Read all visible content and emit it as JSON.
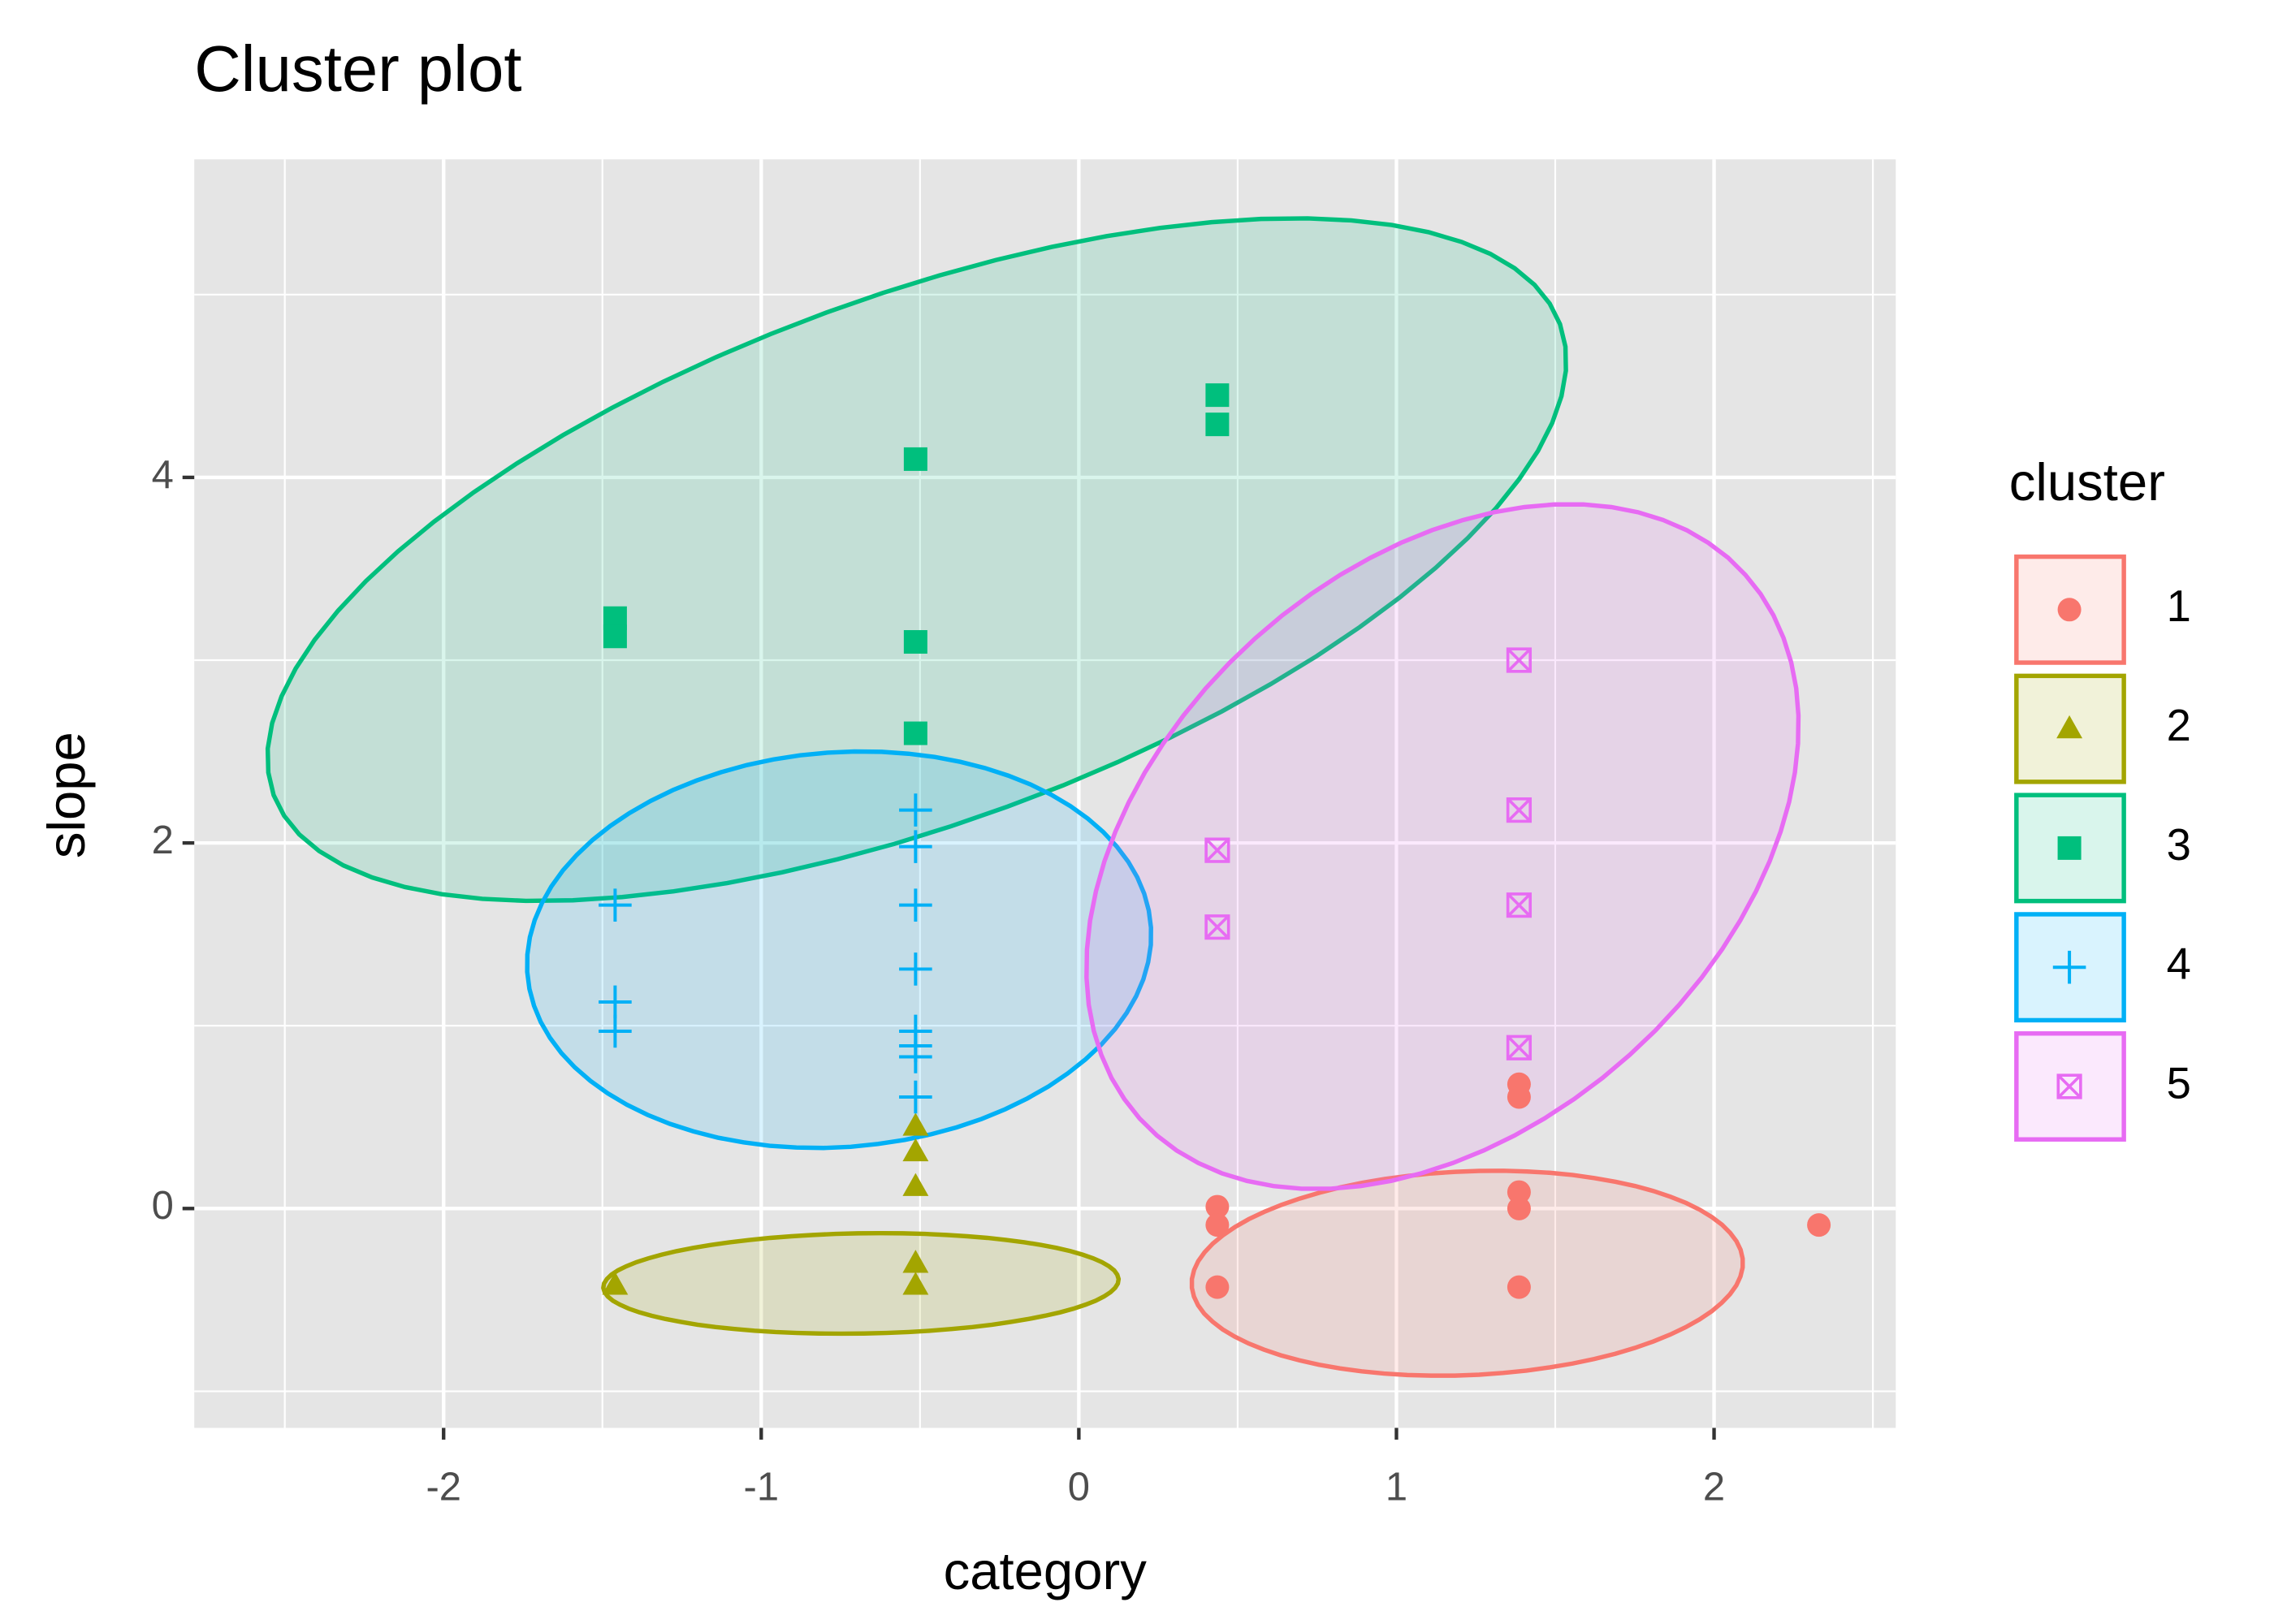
{
  "chart_data": {
    "type": "scatter",
    "title": "Cluster plot",
    "x_label": "category",
    "y_label": "slope",
    "xlim": [
      -2.785,
      2.572
    ],
    "ylim": [
      -1.2,
      5.74
    ],
    "xticks": [
      -2,
      -1,
      0,
      1,
      2
    ],
    "yticks": [
      0,
      2,
      4
    ],
    "xminor": [
      -2.5,
      -1.5,
      -0.5,
      0.5,
      1.5,
      2.5
    ],
    "yminor": [
      -1,
      1,
      3,
      5
    ],
    "grid": true,
    "legend_title": "cluster",
    "legend_position": "right",
    "series": [
      {
        "name": "1",
        "color": "#F8766D",
        "shape": "circle",
        "x": [
          0.436,
          0.436,
          0.436,
          1.386,
          1.386,
          1.386,
          1.386,
          1.386,
          2.33
        ],
        "values": [
          0.01,
          -0.09,
          -0.43,
          0.68,
          0.61,
          0.09,
          0,
          -0.43,
          -0.09
        ],
        "ellipse": {
          "center": [
            1.223,
            -0.354
          ],
          "a": [
            0.867,
            0.08
          ],
          "b": [
            0.037,
            -0.555
          ]
        }
      },
      {
        "name": "2",
        "color": "#A3A500",
        "shape": "triangle",
        "x": [
          -1.46,
          -0.514,
          -0.514,
          -0.514,
          -0.514,
          -0.514
        ],
        "values": [
          -0.42,
          0.45,
          0.31,
          0.12,
          -0.3,
          -0.42
        ],
        "ellipse": {
          "center": [
            -0.686,
            -0.41
          ],
          "a": [
            0.811,
            0.024
          ],
          "b": [
            0.009,
            -0.274
          ]
        }
      },
      {
        "name": "3",
        "color": "#00BF7D",
        "shape": "square",
        "x": [
          -1.46,
          -1.46,
          -0.514,
          -0.514,
          -0.514,
          0.436,
          0.436
        ],
        "values": [
          3.23,
          3.13,
          4.1,
          3.1,
          2.6,
          4.45,
          4.29
        ],
        "ellipse": {
          "center": [
            -0.51,
            3.55
          ],
          "a": [
            2.025,
            1.288
          ],
          "b": [
            0.285,
            -1.352
          ]
        }
      },
      {
        "name": "4",
        "color": "#00B0F6",
        "shape": "plus",
        "x": [
          -1.46,
          -1.46,
          -1.46,
          -0.514,
          -0.514,
          -0.514,
          -0.514,
          -0.514,
          -0.514,
          -0.514,
          -0.514
        ],
        "values": [
          1.66,
          1.13,
          0.97,
          2.18,
          1.98,
          1.66,
          1.31,
          0.97,
          0.89,
          0.83,
          0.61
        ],
        "ellipse": {
          "center": [
            -0.755,
            1.416
          ],
          "a": [
            0.982,
            0.121
          ],
          "b": [
            0.037,
            -1.078
          ]
        }
      },
      {
        "name": "5",
        "color": "#E76BF3",
        "shape": "boxx",
        "x": [
          1.386,
          1.386,
          1.386,
          1.386,
          0.436,
          0.436
        ],
        "values": [
          3.0,
          2.18,
          1.66,
          0.88,
          1.96,
          1.54
        ],
        "ellipse": {
          "center": [
            1.145,
            1.98
          ],
          "a": [
            0.695,
            1.787
          ],
          "b": [
            0.88,
            -0.563
          ]
        }
      }
    ]
  }
}
